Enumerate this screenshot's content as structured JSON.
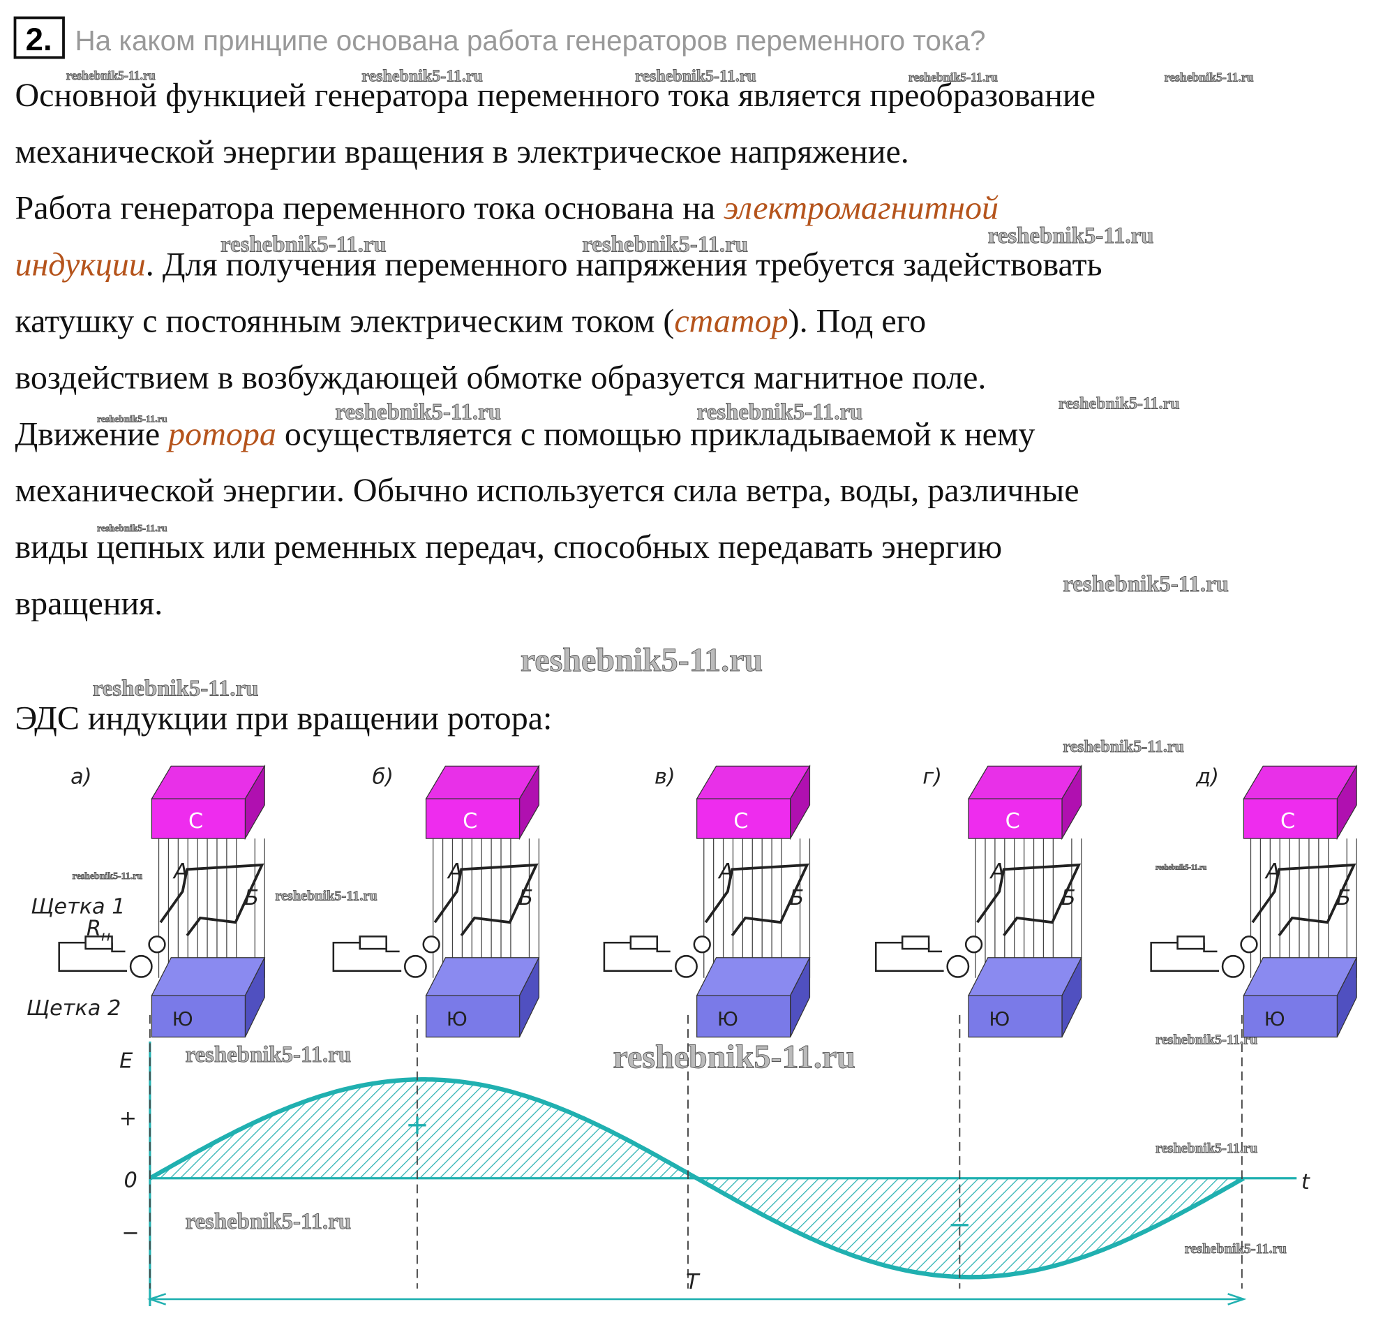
{
  "header": {
    "number": "2.",
    "question": "На каком принципе основана работа генераторов переменного тока?"
  },
  "watermark": "reshebnik5-11.ru",
  "body": [
    [
      {
        "text": "Основной функцией генератора переменного тока является преобразование",
        "em": false
      }
    ],
    [
      {
        "text": "механической энергии вращения в электрическое напряжение.",
        "em": false
      }
    ],
    [
      {
        "text": "Работа генератора переменного тока основана на ",
        "em": false
      },
      {
        "text": "электромагнитной",
        "em": true
      }
    ],
    [
      {
        "text": "индукции",
        "em": true
      },
      {
        "text": ". Для получения переменного напряжения требуется задействовать",
        "em": false
      }
    ],
    [
      {
        "text": "катушку с постоянным электрическим током (",
        "em": false
      },
      {
        "text": "статор",
        "em": true
      },
      {
        "text": "). Под его",
        "em": false
      }
    ],
    [
      {
        "text": "воздействием в возбуждающей обмотке образуется магнитное поле.",
        "em": false
      }
    ],
    [
      {
        "text": "Движение ",
        "em": false
      },
      {
        "text": "ротора",
        "em": true
      },
      {
        "text": " осуществляется с помощью прикладываемой к нему",
        "em": false
      }
    ],
    [
      {
        "text": "механической энергии. Обычно используется сила ветра, воды, различные",
        "em": false
      }
    ],
    [
      {
        "text": "виды цепных или ременных передач, способных передавать энергию",
        "em": false
      }
    ],
    [
      {
        "text": "вращения.",
        "em": false
      }
    ]
  ],
  "caption": "ЭДС индукции при вращении ротора:",
  "figure": {
    "panels": [
      "а)",
      "б)",
      "в)",
      "г)",
      "д)"
    ],
    "north": "С",
    "south": "Ю",
    "side_a": "А",
    "side_b": "Б",
    "brush1": "Щетка 1",
    "brush2": "Щетка 2",
    "load": {
      "symbol": "R",
      "subscript": "н"
    },
    "axis_y": "E",
    "plus": "+",
    "zero": "0",
    "minus": "−",
    "axis_x": "t",
    "period": "T"
  }
}
